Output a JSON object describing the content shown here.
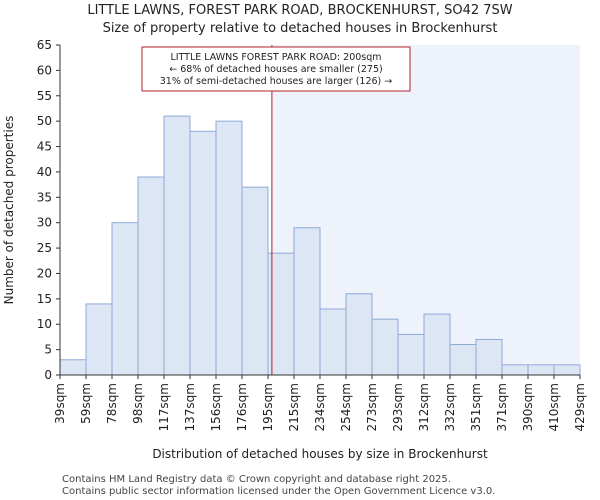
{
  "title_line1": "LITTLE LAWNS, FOREST PARK ROAD, BROCKENHURST, SO42 7SW",
  "title_line2": "Size of property relative to detached houses in Brockenhurst",
  "footer_line1": "Contains HM Land Registry data © Crown copyright and database right 2025.",
  "footer_line2": "Contains public sector information licensed under the Open Government Licence v3.0.",
  "colors": {
    "bar_fill": "#dce6f5",
    "bar_stroke": "#8faad8",
    "highlight_fill": "#eef2fb",
    "marker_line": "#b0202a",
    "annotation_border": "#b0202a",
    "axis": "#333333"
  },
  "chart_data": {
    "type": "bar",
    "title": "Size of property relative to detached houses in Brockenhurst",
    "xlabel": "Distribution of detached houses by size in Brockenhurst",
    "ylabel": "Number of detached properties",
    "ylim": [
      0,
      65
    ],
    "yticks": [
      0,
      5,
      10,
      15,
      20,
      25,
      30,
      35,
      40,
      45,
      50,
      55,
      60,
      65
    ],
    "bin_edges": [
      "39sqm",
      "59sqm",
      "78sqm",
      "98sqm",
      "117sqm",
      "137sqm",
      "156sqm",
      "176sqm",
      "195sqm",
      "215sqm",
      "234sqm",
      "254sqm",
      "273sqm",
      "293sqm",
      "312sqm",
      "332sqm",
      "351sqm",
      "371sqm",
      "390sqm",
      "410sqm",
      "429sqm"
    ],
    "values": [
      3,
      14,
      30,
      39,
      51,
      48,
      50,
      37,
      24,
      29,
      13,
      16,
      11,
      8,
      12,
      6,
      7,
      2,
      2,
      2
    ],
    "marker_position_bins": 8.15,
    "annotation": {
      "line1": "LITTLE LAWNS FOREST PARK ROAD: 200sqm",
      "line2": "← 68% of detached houses are smaller (275)",
      "line3": "31% of semi-detached houses are larger (126) →"
    }
  }
}
